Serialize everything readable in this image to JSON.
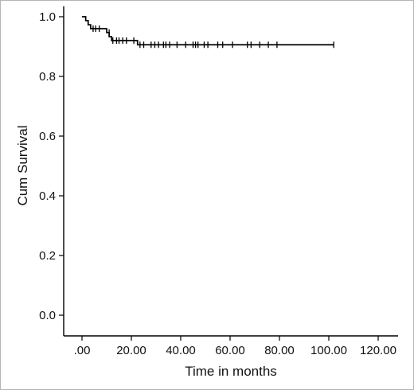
{
  "chart_data": {
    "type": "line",
    "subtype": "kaplan-meier",
    "title": "",
    "xlabel": "Time in months",
    "ylabel": "Cum Survival",
    "xlim": [
      0,
      120
    ],
    "ylim": [
      0,
      1
    ],
    "x_ticks": [
      ".00",
      "20.00",
      "40.00",
      "60.00",
      "80.00",
      "100.00",
      "120.00"
    ],
    "y_ticks": [
      "0.0",
      "0.2",
      "0.4",
      "0.6",
      "0.8",
      "1.0"
    ],
    "grid": false,
    "legend": "none",
    "line_color": "#000000",
    "series": [
      {
        "steps": [
          {
            "x": 0,
            "y": 1.0
          },
          {
            "x": 1.5,
            "y": 0.987
          },
          {
            "x": 2.5,
            "y": 0.973
          },
          {
            "x": 3.5,
            "y": 0.96
          },
          {
            "x": 10.0,
            "y": 0.947
          },
          {
            "x": 11.0,
            "y": 0.933
          },
          {
            "x": 12.0,
            "y": 0.92
          },
          {
            "x": 22.5,
            "y": 0.906
          },
          {
            "x": 102.0,
            "y": 0.906
          }
        ],
        "censored": [
          {
            "x": 4.5,
            "y": 0.96
          },
          {
            "x": 5.5,
            "y": 0.96
          },
          {
            "x": 7.0,
            "y": 0.96
          },
          {
            "x": 11.0,
            "y": 0.947
          },
          {
            "x": 12.5,
            "y": 0.92
          },
          {
            "x": 14.0,
            "y": 0.92
          },
          {
            "x": 15.0,
            "y": 0.92
          },
          {
            "x": 16.5,
            "y": 0.92
          },
          {
            "x": 18.0,
            "y": 0.92
          },
          {
            "x": 21.0,
            "y": 0.92
          },
          {
            "x": 23.5,
            "y": 0.906
          },
          {
            "x": 25.0,
            "y": 0.906
          },
          {
            "x": 28.0,
            "y": 0.906
          },
          {
            "x": 29.5,
            "y": 0.906
          },
          {
            "x": 31.0,
            "y": 0.906
          },
          {
            "x": 33.0,
            "y": 0.906
          },
          {
            "x": 34.0,
            "y": 0.906
          },
          {
            "x": 35.5,
            "y": 0.906
          },
          {
            "x": 38.5,
            "y": 0.906
          },
          {
            "x": 42.0,
            "y": 0.906
          },
          {
            "x": 45.0,
            "y": 0.906
          },
          {
            "x": 46.0,
            "y": 0.906
          },
          {
            "x": 47.0,
            "y": 0.906
          },
          {
            "x": 49.5,
            "y": 0.906
          },
          {
            "x": 51.0,
            "y": 0.906
          },
          {
            "x": 55.0,
            "y": 0.906
          },
          {
            "x": 57.0,
            "y": 0.906
          },
          {
            "x": 61.0,
            "y": 0.906
          },
          {
            "x": 67.0,
            "y": 0.906
          },
          {
            "x": 68.5,
            "y": 0.906
          },
          {
            "x": 72.0,
            "y": 0.906
          },
          {
            "x": 75.5,
            "y": 0.906
          },
          {
            "x": 79.0,
            "y": 0.906
          },
          {
            "x": 102.0,
            "y": 0.906
          }
        ]
      }
    ]
  }
}
